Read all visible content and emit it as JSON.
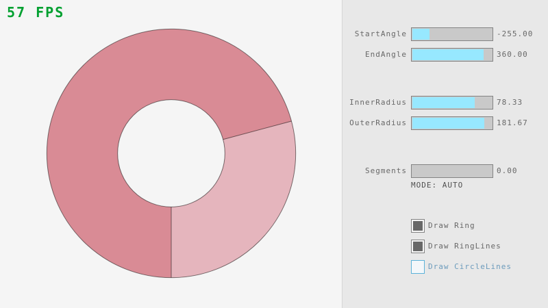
{
  "fps": {
    "text": "57 FPS",
    "color": "#00A030"
  },
  "ring": {
    "start_angle": -255.0,
    "end_angle": 360.0,
    "inner_radius": 78.33,
    "outer_radius": 181.67,
    "segments": 0.0,
    "mode": "AUTO",
    "fill_color_single_pass": "#E5B5BD",
    "fill_color_overlap": "#D98B95",
    "outline_color": "#5E4A50",
    "background_color": "#F5F5F5"
  },
  "panel": {
    "sliders": [
      {
        "label": "StartAngle",
        "value": "-255.00",
        "fill_pct": 21.67
      },
      {
        "label": "EndAngle",
        "value": "360.00",
        "fill_pct": 90.0
      },
      {
        "label": "InnerRadius",
        "value": "78.33",
        "fill_pct": 78.33
      },
      {
        "label": "OuterRadius",
        "value": "181.67",
        "fill_pct": 90.83
      },
      {
        "label": "Segments",
        "value": "0.00",
        "fill_pct": 0.0
      }
    ],
    "mode_text": "MODE: AUTO",
    "checkboxes": [
      {
        "label": "Draw Ring",
        "checked": true,
        "focused": false
      },
      {
        "label": "Draw RingLines",
        "checked": true,
        "focused": false
      },
      {
        "label": "Draw CircleLines",
        "checked": false,
        "focused": true
      }
    ],
    "colors": {
      "panel_bg": "#E8E8E8",
      "divider": "#D6D6D6",
      "slider_fill": "#97E8FF",
      "slider_track": "#C9C9C9",
      "control_border": "#838383",
      "text": "#686868",
      "mode_text": "#505050",
      "checkbox_check": "#686868",
      "focused_border": "#5BB2D9",
      "focused_text": "#6C9BBC"
    }
  }
}
